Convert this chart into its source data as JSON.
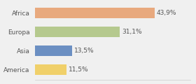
{
  "categories": [
    "Africa",
    "Europa",
    "Asia",
    "America"
  ],
  "values": [
    43.9,
    31.1,
    13.5,
    11.5
  ],
  "labels": [
    "43,9%",
    "31,1%",
    "13,5%",
    "11,5%"
  ],
  "bar_colors": [
    "#e8a97e",
    "#b5c98e",
    "#6b8fc2",
    "#f0d06a"
  ],
  "background_color": "#f0f0f0",
  "xlim": [
    0,
    57
  ],
  "label_fontsize": 6.5,
  "tick_fontsize": 6.5,
  "bar_height": 0.55
}
